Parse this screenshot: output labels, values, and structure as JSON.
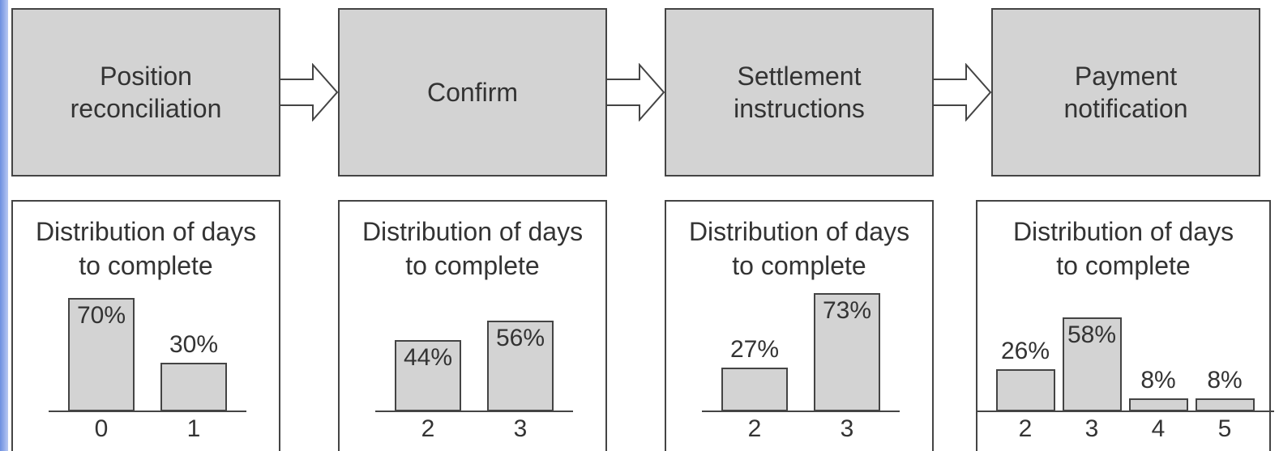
{
  "steps": [
    {
      "label": "Position reconciliation",
      "chart": {
        "type": "bar",
        "title": "Distribution of days to complete",
        "categories": [
          "0",
          "1"
        ],
        "values": [
          70,
          30
        ],
        "value_labels": [
          "70%",
          "30%"
        ]
      }
    },
    {
      "label": "Confirm",
      "chart": {
        "type": "bar",
        "title": "Distribution of days to complete",
        "categories": [
          "2",
          "3"
        ],
        "values": [
          44,
          56
        ],
        "value_labels": [
          "44%",
          "56%"
        ]
      }
    },
    {
      "label": "Settlement instructions",
      "chart": {
        "type": "bar",
        "title": "Distribution of days to complete",
        "categories": [
          "2",
          "3"
        ],
        "values": [
          27,
          73
        ],
        "value_labels": [
          "27%",
          "73%"
        ]
      }
    },
    {
      "label": "Payment notification",
      "chart": {
        "type": "bar",
        "title": "Distribution of days to complete",
        "categories": [
          "2",
          "3",
          "4",
          "5"
        ],
        "values": [
          26,
          58,
          8,
          8
        ],
        "value_labels": [
          "26%",
          "58%",
          "8%",
          "8%"
        ]
      }
    }
  ]
}
